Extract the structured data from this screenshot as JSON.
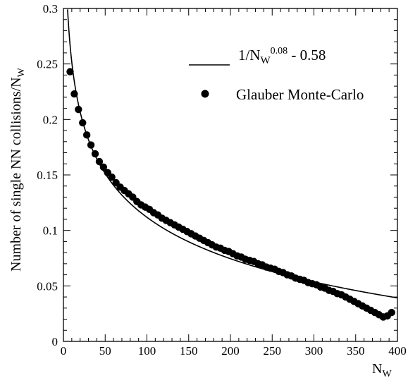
{
  "chart_data": {
    "type": "scatter",
    "xlabel": "N",
    "xlabel_sub": "W",
    "ylabel": "Number of single NN collisions/N",
    "ylabel_sub": "W",
    "xlim": [
      0,
      400
    ],
    "ylim": [
      0,
      0.3
    ],
    "x_ticks": [
      0,
      50,
      100,
      150,
      200,
      250,
      300,
      350,
      400
    ],
    "x_tick_labels": [
      "0",
      "50",
      "100",
      "150",
      "200",
      "250",
      "300",
      "350",
      "400"
    ],
    "y_ticks": [
      0,
      0.05,
      0.1,
      0.15,
      0.2,
      0.25,
      0.3
    ],
    "y_tick_labels": [
      "0",
      "0.05",
      "0.1",
      "0.15",
      "0.2",
      "0.25",
      "0.3"
    ],
    "grid": false,
    "legend_position": "top-right",
    "series": [
      {
        "name": "Glauber Monte-Carlo",
        "kind": "points",
        "color": "#000000",
        "x": [
          8,
          13,
          18,
          23,
          28,
          33,
          38,
          43,
          48,
          53,
          58,
          63,
          68,
          73,
          78,
          83,
          88,
          93,
          98,
          103,
          108,
          113,
          118,
          123,
          128,
          133,
          138,
          143,
          148,
          153,
          158,
          163,
          168,
          173,
          178,
          183,
          188,
          193,
          198,
          203,
          208,
          213,
          218,
          223,
          228,
          233,
          238,
          243,
          248,
          253,
          258,
          263,
          268,
          273,
          278,
          283,
          288,
          293,
          298,
          303,
          308,
          313,
          318,
          323,
          328,
          333,
          338,
          343,
          348,
          353,
          358,
          363,
          368,
          373,
          378,
          383,
          388,
          393
        ],
        "y": [
          0.243,
          0.223,
          0.209,
          0.197,
          0.186,
          0.177,
          0.169,
          0.162,
          0.157,
          0.152,
          0.148,
          0.143,
          0.139,
          0.136,
          0.133,
          0.13,
          0.126,
          0.123,
          0.121,
          0.119,
          0.116,
          0.114,
          0.111,
          0.109,
          0.107,
          0.105,
          0.103,
          0.101,
          0.099,
          0.097,
          0.095,
          0.093,
          0.091,
          0.089,
          0.087,
          0.085,
          0.084,
          0.082,
          0.081,
          0.079,
          0.077,
          0.076,
          0.074,
          0.073,
          0.072,
          0.07,
          0.069,
          0.067,
          0.066,
          0.065,
          0.063,
          0.062,
          0.06,
          0.059,
          0.057,
          0.056,
          0.055,
          0.053,
          0.052,
          0.051,
          0.049,
          0.048,
          0.046,
          0.045,
          0.043,
          0.042,
          0.04,
          0.038,
          0.036,
          0.034,
          0.032,
          0.03,
          0.028,
          0.026,
          0.024,
          0.022,
          0.023,
          0.026
        ]
      },
      {
        "name": "1/N",
        "name_sub": "W",
        "name_sup": "0.08",
        "name_tail": " - 0.58",
        "kind": "curve",
        "color": "#000000",
        "formula": "1/N_W^0.08 - 0.58"
      }
    ]
  }
}
